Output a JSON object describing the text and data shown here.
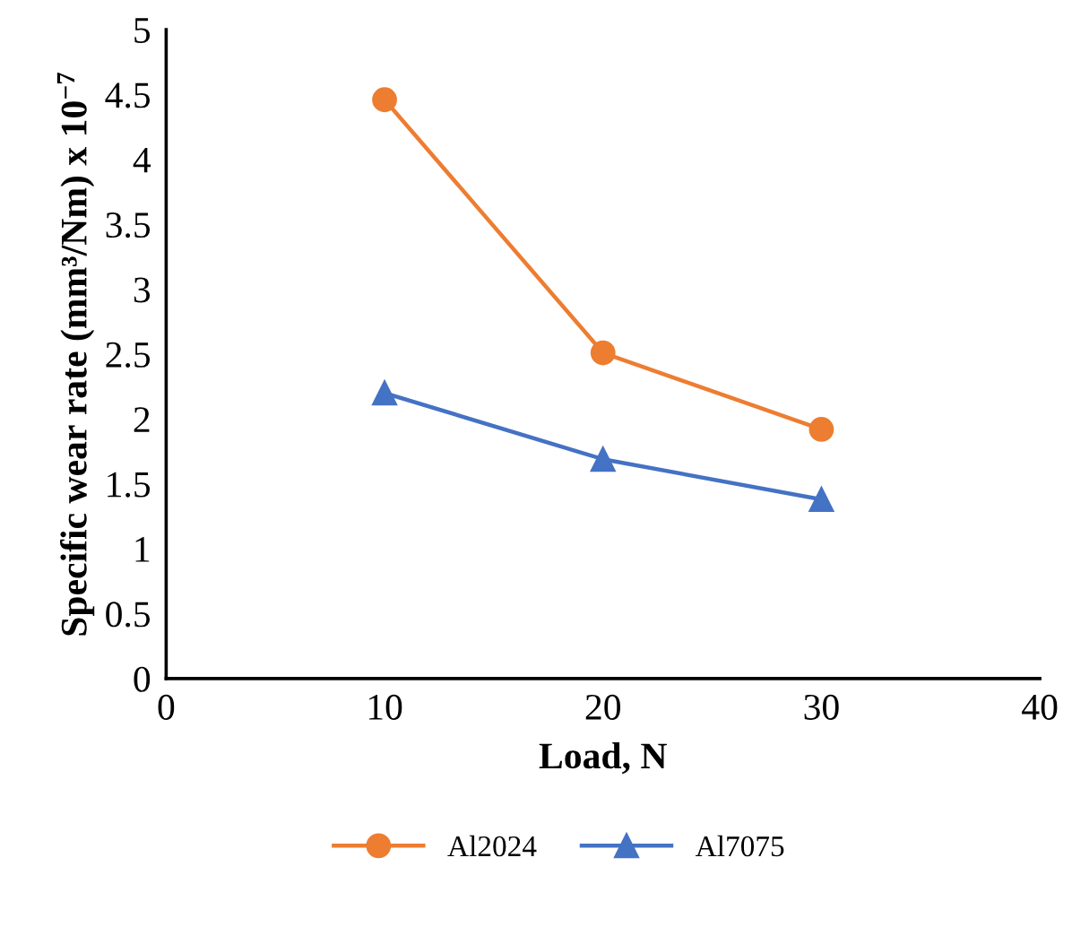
{
  "chart_data": {
    "type": "line",
    "xlabel": "Load, N",
    "ylabel": "Specific wear rate (mm³/Nm) x 10$^{−7}$",
    "x": [
      10,
      20,
      30
    ],
    "series": [
      {
        "name": "Al2024",
        "color": "#ed7d31",
        "marker": "circle",
        "values": [
          4.46,
          2.51,
          1.92
        ]
      },
      {
        "name": "Al7075",
        "color": "#4472c4",
        "marker": "triangle",
        "values": [
          2.2,
          1.69,
          1.38
        ]
      }
    ],
    "xlim": [
      0,
      40
    ],
    "xticks": [
      0,
      10,
      20,
      30,
      40
    ],
    "ylim": [
      0,
      5
    ],
    "yticks": [
      0,
      0.5,
      1,
      1.5,
      2,
      2.5,
      3,
      3.5,
      4,
      4.5,
      5
    ],
    "grid": false,
    "legend": "bottom"
  }
}
